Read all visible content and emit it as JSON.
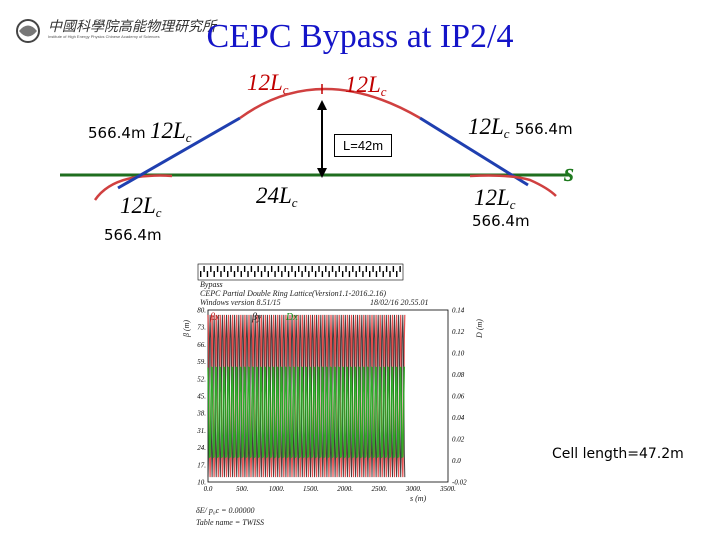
{
  "header": {
    "logo_text": "中國科學院高能物理研究所",
    "logo_subtext": "Institute of High Energy Physics Chinese Academy of Sciences"
  },
  "slide": {
    "title": "CEPC Bypass at IP2/4",
    "segment_label_main": "12L",
    "segment_label_sub": "c",
    "segment_label_double_main": "24L",
    "dist_left": "566.4m",
    "dist_right": "566.4m",
    "dist_bottom_left": "566.4m",
    "dist_bottom_right": "566.4m",
    "separation_label": "L=42m",
    "s_axis_label": "s",
    "cell_length": "Cell length=47.2m"
  },
  "plot": {
    "header_line1": "Bypass",
    "header_line2": "CEPC Partial Double Ring Lattice(Version1.1-2016.2.16)",
    "header_line3": "Windows version 8.51/15",
    "header_date": "18/02/16  20.55.01",
    "legend_beta_x": "βx",
    "legend_beta_y": "βy",
    "legend_dx": "Dx",
    "y_left_label": "β (m)",
    "y_right_label": "D (m)",
    "x_label": "s (m)",
    "footer_line1": "δE/ p₀c  =  0.00000",
    "footer_line2": "Table name = TWISS",
    "colors": {
      "beta_x": "#e03030",
      "beta_y": "#202020",
      "dx": "#22b022"
    }
  },
  "chart_data": {
    "type": "line",
    "title": "",
    "xlabel": "s (m)",
    "ylabel": "β (m)",
    "y2label": "D (m)",
    "xlim": [
      0,
      3500
    ],
    "ylim": [
      10,
      80
    ],
    "y2lim": [
      -0.02,
      0.14
    ],
    "x_ticks": [
      "0.0",
      "500.",
      "1000.",
      "1500.",
      "2000.",
      "2500.",
      "3000.",
      "3500."
    ],
    "y_ticks": [
      "10.",
      "17.",
      "24.",
      "31.",
      "38.",
      "45.",
      "52.",
      "59.",
      "66.",
      "73.",
      "80."
    ],
    "y2_ticks": [
      "-0.02",
      "0.0",
      "0.02",
      "0.04",
      "0.06",
      "0.08",
      "0.10",
      "0.12",
      "0.14"
    ],
    "series": [
      {
        "name": "βx",
        "cells": 48,
        "min": 12,
        "max": 78
      },
      {
        "name": "βy",
        "cells": 48,
        "min": 12,
        "max": 78
      },
      {
        "name": "Dx",
        "cells": 48,
        "min": 0.0,
        "max": 0.09
      }
    ]
  }
}
